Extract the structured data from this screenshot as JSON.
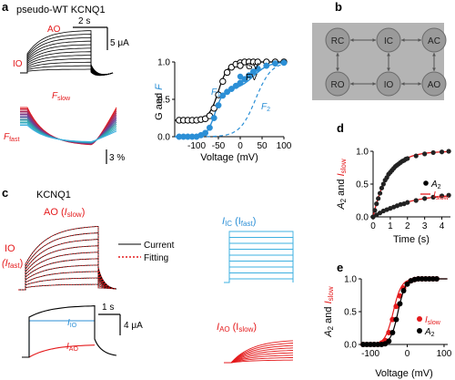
{
  "colors": {
    "red": "#e41a1c",
    "blue": "#2b8fd6",
    "cyan": "#3db0e0",
    "teal": "#2aa6a6",
    "purple": "#6a3d9a",
    "gray": "#8c8c8c"
  },
  "panel_labels": {
    "a": "a",
    "b": "b",
    "c": "c",
    "d": "d",
    "e": "e"
  },
  "panel_a": {
    "title": "pseudo-WT KCNQ1",
    "time_scale": "2 s",
    "current_scale": "5 μA",
    "ao": "AO",
    "io": "IO",
    "f_slow": "F",
    "f_slow_sub": "slow",
    "f_fast": "F",
    "f_fast_sub": "fast",
    "percent_scale": "3 %"
  },
  "chart_a": {
    "legend_gv": "GV",
    "legend_fv": "FV",
    "f1": "F",
    "f1_sub": "1",
    "f2": "F",
    "f2_sub": "2",
    "ylabel_g": "G",
    "ylabel_and": " and ",
    "ylabel_f": "F",
    "xlabel": "Voltage (mV)",
    "xticks": [
      "-100",
      "-50",
      "0",
      "50",
      "100"
    ],
    "yticks": [
      "0.0",
      "0.5",
      "1.0"
    ]
  },
  "chart_data": [
    {
      "type": "scatter",
      "xlim": [
        -150,
        100
      ],
      "ylim": [
        0,
        1
      ],
      "xlabel": "Voltage (mV)",
      "ylabel": "G and F",
      "series": [
        {
          "name": "GV",
          "x": [
            -140,
            -130,
            -120,
            -110,
            -100,
            -90,
            -80,
            -70,
            -60,
            -50,
            -40,
            -30,
            -20,
            -10,
            0,
            10,
            20,
            30,
            40,
            60,
            80,
            100
          ],
          "y": [
            0.22,
            0.22,
            0.22,
            0.22,
            0.22,
            0.23,
            0.24,
            0.28,
            0.38,
            0.56,
            0.74,
            0.86,
            0.93,
            0.97,
            0.99,
            1.0,
            1.0,
            1.0,
            1.0,
            1.0,
            1.0,
            1.0
          ]
        },
        {
          "name": "FV",
          "x": [
            -140,
            -130,
            -120,
            -110,
            -100,
            -90,
            -80,
            -70,
            -60,
            -50,
            -40,
            -30,
            -20,
            -10,
            0,
            10,
            20,
            30,
            40,
            60,
            80,
            100
          ],
          "y": [
            0.0,
            0.0,
            0.0,
            0.0,
            0.0,
            0.02,
            0.05,
            0.12,
            0.25,
            0.42,
            0.55,
            0.6,
            0.64,
            0.68,
            0.72,
            0.77,
            0.82,
            0.87,
            0.91,
            0.95,
            0.98,
            0.99
          ]
        }
      ]
    },
    {
      "type": "line",
      "xlim": [
        0,
        4.5
      ],
      "ylim": [
        0,
        1
      ],
      "xlabel": "Time (s)",
      "series": [
        {
          "name": "A2",
          "x": [
            0,
            0.1,
            0.2,
            0.3,
            0.4,
            0.5,
            0.6,
            0.7,
            0.8,
            0.9,
            1.0,
            1.1,
            1.2,
            1.3,
            1.4,
            1.5,
            1.6,
            1.7,
            1.8,
            1.9,
            2.0,
            2.5,
            3.0,
            3.5,
            4.0,
            4.4
          ],
          "y": [
            0.0,
            0.1,
            0.2,
            0.28,
            0.36,
            0.44,
            0.5,
            0.56,
            0.6,
            0.65,
            0.68,
            0.71,
            0.74,
            0.77,
            0.79,
            0.81,
            0.83,
            0.85,
            0.86,
            0.88,
            0.89,
            0.93,
            0.96,
            0.98,
            0.99,
            1.0
          ]
        },
        {
          "name": "I_slow",
          "x": [
            0,
            0.2,
            0.4,
            0.6,
            0.8,
            1.0,
            1.2,
            1.4,
            1.6,
            1.8,
            2.0,
            2.5,
            3.0,
            3.5,
            4.0,
            4.4
          ],
          "y": [
            0.0,
            0.03,
            0.06,
            0.09,
            0.11,
            0.13,
            0.15,
            0.17,
            0.19,
            0.2,
            0.22,
            0.25,
            0.28,
            0.3,
            0.32,
            0.33
          ]
        }
      ]
    },
    {
      "type": "scatter",
      "xlim": [
        -125,
        110
      ],
      "ylim": [
        0,
        1
      ],
      "xlabel": "Voltage (mV)",
      "series": [
        {
          "name": "I_slow",
          "x": [
            -120,
            -110,
            -100,
            -90,
            -80,
            -70,
            -60,
            -50,
            -40,
            -30,
            -20,
            -10,
            0,
            10,
            20,
            30,
            40,
            50,
            60,
            70,
            80
          ],
          "y": [
            0.0,
            0.0,
            0.0,
            0.0,
            0.0,
            0.02,
            0.06,
            0.18,
            0.38,
            0.58,
            0.74,
            0.86,
            0.93,
            0.97,
            0.99,
            1.0,
            1.0,
            1.0,
            1.0,
            1.0,
            1.0
          ]
        },
        {
          "name": "A2",
          "x": [
            -120,
            -110,
            -100,
            -90,
            -80,
            -70,
            -60,
            -50,
            -40,
            -30,
            -20,
            -10,
            0,
            10,
            20,
            30,
            40,
            50,
            60,
            70,
            80
          ],
          "y": [
            0.0,
            0.0,
            0.0,
            0.0,
            0.0,
            0.0,
            0.01,
            0.05,
            0.18,
            0.38,
            0.62,
            0.82,
            0.92,
            0.97,
            0.99,
            1.0,
            1.0,
            1.0,
            1.0,
            1.0,
            1.0
          ]
        }
      ]
    }
  ],
  "panel_b": {
    "states": [
      "RC",
      "IC",
      "AC",
      "RO",
      "IO",
      "AO"
    ]
  },
  "panel_d": {
    "ylabel_a": "A",
    "ylabel_a_sub": "2",
    "ylabel_and": " and ",
    "ylabel_i": "I",
    "ylabel_i_sub": "slow",
    "xlabel": "Time (s)",
    "xticks": [
      "0",
      "1",
      "2",
      "3",
      "4"
    ],
    "yticks": [
      "0.0",
      "0.5",
      "1.0"
    ],
    "legend_a": "A",
    "legend_a_sub": "2",
    "legend_i": "I",
    "legend_i_sub": "slow"
  },
  "panel_e": {
    "ylabel_a": "A",
    "ylabel_a_sub": "2",
    "ylabel_and": " and ",
    "ylabel_i": "I",
    "ylabel_i_sub": "slow",
    "xlabel": "Voltage (mV)",
    "xticks": [
      "-100",
      "0",
      "100"
    ],
    "yticks": [
      "0.0",
      "0.5",
      "1.0"
    ],
    "legend_i": "I",
    "legend_i_sub": "slow",
    "legend_a": "A",
    "legend_a_sub": "2"
  },
  "panel_c": {
    "title": "KCNQ1",
    "ao": "AO (",
    "ao_i": "I",
    "ao_sub": "slow",
    "ao_close": ")",
    "io": "IO",
    "io_i": "(I",
    "io_sub": "fast",
    "io_close": ")",
    "legend_current": "Current",
    "legend_fitting": "Fitting",
    "ic_label": "I",
    "ic_sub": "IC",
    "ic_paren": "(I",
    "ic_paren_sub": "fast",
    "ic_close": ")",
    "time_scale": "1 s",
    "current_scale": "4 μA",
    "i_io": "I",
    "i_io_sub": "IO",
    "i_ao": "I",
    "i_ao_sub": "AO",
    "iao_label": "I",
    "iao_sub": "AO",
    "iao_paren": "(I",
    "iao_paren_sub": "slow",
    "iao_close": ")"
  }
}
